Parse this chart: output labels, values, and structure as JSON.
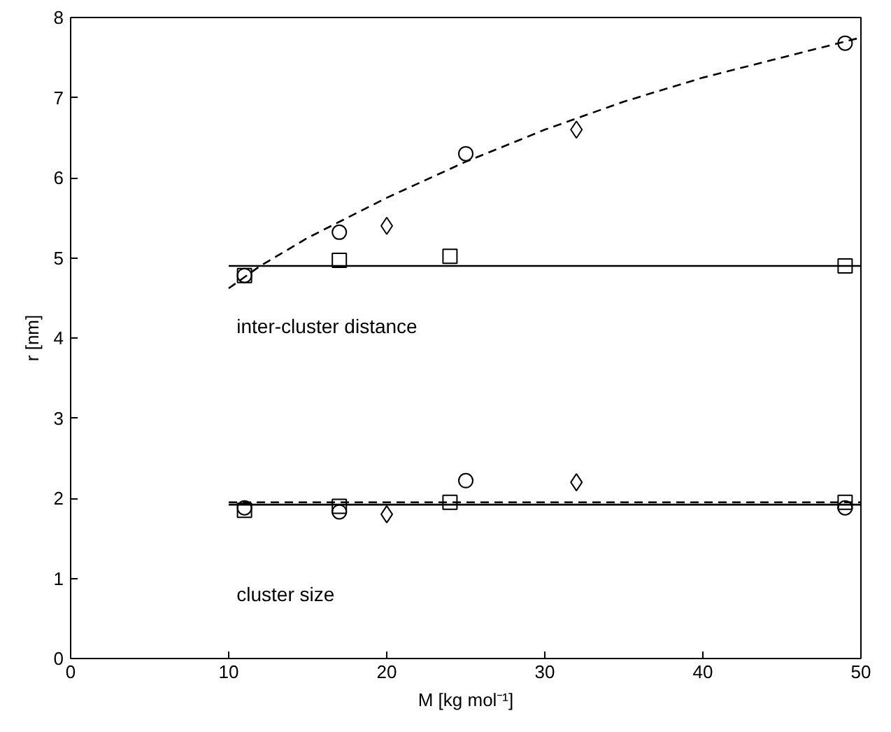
{
  "chart_data": {
    "type": "scatter",
    "xlabel": "M [kg mol⁻¹]",
    "ylabel": "r [nm]",
    "xlim": [
      0,
      50
    ],
    "ylim": [
      0,
      8
    ],
    "xticks": [
      0,
      10,
      20,
      30,
      40,
      50
    ],
    "yticks": [
      0,
      1,
      2,
      3,
      4,
      5,
      6,
      7,
      8
    ],
    "grid": false,
    "annotations": [
      "inter-cluster distance",
      "cluster size"
    ],
    "series": [
      {
        "marker": "circle",
        "color": "#000000",
        "x": [
          11,
          17,
          25,
          49,
          11,
          17,
          25,
          49
        ],
        "values": [
          4.78,
          5.32,
          6.3,
          7.68,
          1.88,
          1.83,
          2.22,
          1.88
        ]
      },
      {
        "marker": "diamond",
        "color": "#000000",
        "x": [
          20,
          32,
          20,
          32
        ],
        "values": [
          5.4,
          6.6,
          1.8,
          2.2
        ]
      },
      {
        "marker": "square",
        "color": "#000000",
        "x": [
          11,
          17,
          24,
          49,
          11,
          17,
          24,
          49
        ],
        "values": [
          4.78,
          4.97,
          5.02,
          4.9,
          1.85,
          1.9,
          1.95,
          1.95
        ]
      },
      {
        "type": "line",
        "line_style": "solid",
        "color": "#000000",
        "x": [
          10,
          50
        ],
        "values": [
          4.9,
          4.9
        ]
      },
      {
        "type": "line",
        "line_style": "solid",
        "color": "#000000",
        "x": [
          10,
          50
        ],
        "values": [
          1.92,
          1.92
        ]
      },
      {
        "type": "line",
        "line_style": "dashed",
        "color": "#000000",
        "x": [
          10,
          50
        ],
        "values": [
          1.95,
          1.95
        ]
      },
      {
        "type": "line",
        "line_style": "dashed",
        "color": "#000000",
        "x": [
          10,
          12,
          15,
          20,
          25,
          30,
          35,
          40,
          45,
          50
        ],
        "values": [
          4.62,
          4.9,
          5.25,
          5.75,
          6.2,
          6.6,
          6.95,
          7.25,
          7.5,
          7.75
        ]
      }
    ]
  }
}
